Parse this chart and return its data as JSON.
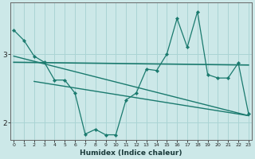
{
  "xlabel": "Humidex (Indice chaleur)",
  "bg_color": "#cce8e8",
  "grid_color": "#aad4d4",
  "line_color": "#1a7a6e",
  "x_ticks": [
    0,
    1,
    2,
    3,
    4,
    5,
    6,
    7,
    8,
    9,
    10,
    11,
    12,
    13,
    14,
    15,
    16,
    17,
    18,
    19,
    20,
    21,
    22,
    23
  ],
  "y_ticks": [
    2,
    3
  ],
  "ylim": [
    1.75,
    3.75
  ],
  "xlim": [
    -0.3,
    23.3
  ],
  "line1_x": [
    0,
    1,
    2,
    3,
    4,
    5,
    6,
    7,
    8,
    9,
    10,
    11,
    12,
    13,
    14,
    15,
    16,
    17,
    18,
    19,
    20,
    21,
    22,
    23
  ],
  "line1_y": [
    3.35,
    3.2,
    2.97,
    2.88,
    2.62,
    2.62,
    2.43,
    1.83,
    1.9,
    1.82,
    1.82,
    2.33,
    2.43,
    2.78,
    2.76,
    3.0,
    3.52,
    3.1,
    3.62,
    2.7,
    2.65,
    2.65,
    2.87,
    2.13
  ],
  "line2_x": [
    0,
    23
  ],
  "line2_y": [
    2.88,
    2.84
  ],
  "line3_x": [
    0,
    23
  ],
  "line3_y": [
    2.97,
    2.1
  ],
  "line4_x": [
    2,
    23
  ],
  "line4_y": [
    2.6,
    2.1
  ]
}
